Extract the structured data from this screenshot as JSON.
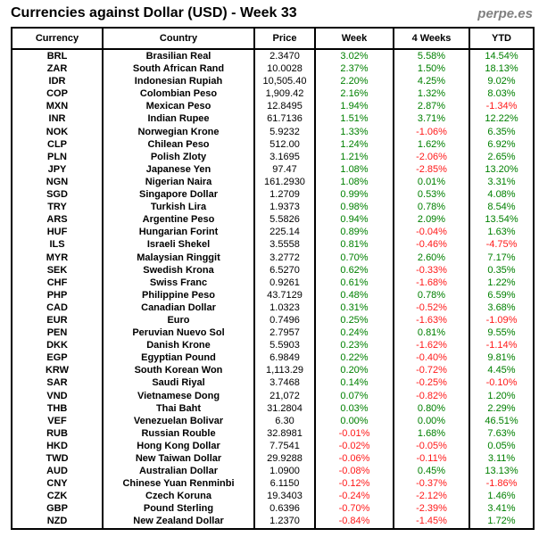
{
  "header": {
    "title": "Currencies against Dollar (USD) - Week 33",
    "brand": "perpe.es"
  },
  "colors": {
    "positive": "#008000",
    "negative": "#ff1a1a",
    "text": "#000000",
    "brand": "#808080",
    "border": "#000000"
  },
  "chart_data": {
    "type": "table",
    "title": "Currencies against Dollar (USD) - Week 33",
    "columns": [
      "Currency",
      "Country",
      "Price",
      "Week",
      "4 Weeks",
      "YTD"
    ],
    "rows": [
      [
        "BRL",
        "Brasilian Real",
        "2.3470",
        "3.02%",
        "5.58%",
        "14.54%"
      ],
      [
        "ZAR",
        "South African Rand",
        "10.0028",
        "2.37%",
        "1.50%",
        "18.13%"
      ],
      [
        "IDR",
        "Indonesian Rupiah",
        "10,505.40",
        "2.20%",
        "4.25%",
        "9.02%"
      ],
      [
        "COP",
        "Colombian Peso",
        "1,909.42",
        "2.16%",
        "1.32%",
        "8.03%"
      ],
      [
        "MXN",
        "Mexican Peso",
        "12.8495",
        "1.94%",
        "2.87%",
        "-1.34%"
      ],
      [
        "INR",
        "Indian Rupee",
        "61.7136",
        "1.51%",
        "3.71%",
        "12.22%"
      ],
      [
        "NOK",
        "Norwegian Krone",
        "5.9232",
        "1.33%",
        "-1.06%",
        "6.35%"
      ],
      [
        "CLP",
        "Chilean Peso",
        "512.00",
        "1.24%",
        "1.62%",
        "6.92%"
      ],
      [
        "PLN",
        "Polish Zloty",
        "3.1695",
        "1.21%",
        "-2.06%",
        "2.65%"
      ],
      [
        "JPY",
        "Japanese Yen",
        "97.47",
        "1.08%",
        "-2.85%",
        "13.20%"
      ],
      [
        "NGN",
        "Nigerian Naira",
        "161.2930",
        "1.08%",
        "0.01%",
        "3.31%"
      ],
      [
        "SGD",
        "Singapore Dollar",
        "1.2709",
        "0.99%",
        "0.53%",
        "4.08%"
      ],
      [
        "TRY",
        "Turkish Lira",
        "1.9373",
        "0.98%",
        "0.78%",
        "8.54%"
      ],
      [
        "ARS",
        "Argentine Peso",
        "5.5826",
        "0.94%",
        "2.09%",
        "13.54%"
      ],
      [
        "HUF",
        "Hungarian Forint",
        "225.14",
        "0.89%",
        "-0.04%",
        "1.63%"
      ],
      [
        "ILS",
        "Israeli Shekel",
        "3.5558",
        "0.81%",
        "-0.46%",
        "-4.75%"
      ],
      [
        "MYR",
        "Malaysian Ringgit",
        "3.2772",
        "0.70%",
        "2.60%",
        "7.17%"
      ],
      [
        "SEK",
        "Swedish Krona",
        "6.5270",
        "0.62%",
        "-0.33%",
        "0.35%"
      ],
      [
        "CHF",
        "Swiss Franc",
        "0.9261",
        "0.61%",
        "-1.68%",
        "1.22%"
      ],
      [
        "PHP",
        "Philippine Peso",
        "43.7129",
        "0.48%",
        "0.78%",
        "6.59%"
      ],
      [
        "CAD",
        "Canadian Dollar",
        "1.0323",
        "0.31%",
        "-0.52%",
        "3.68%"
      ],
      [
        "EUR",
        "Euro",
        "0.7496",
        "0.25%",
        "-1.63%",
        "-1.09%"
      ],
      [
        "PEN",
        "Peruvian Nuevo Sol",
        "2.7957",
        "0.24%",
        "0.81%",
        "9.55%"
      ],
      [
        "DKK",
        "Danish Krone",
        "5.5903",
        "0.23%",
        "-1.62%",
        "-1.14%"
      ],
      [
        "EGP",
        "Egyptian Pound",
        "6.9849",
        "0.22%",
        "-0.40%",
        "9.81%"
      ],
      [
        "KRW",
        "South Korean Won",
        "1,113.29",
        "0.20%",
        "-0.72%",
        "4.45%"
      ],
      [
        "SAR",
        "Saudi Riyal",
        "3.7468",
        "0.14%",
        "-0.25%",
        "-0.10%"
      ],
      [
        "VND",
        "Vietnamese Dong",
        "21,072",
        "0.07%",
        "-0.82%",
        "1.20%"
      ],
      [
        "THB",
        "Thai Baht",
        "31.2804",
        "0.03%",
        "0.80%",
        "2.29%"
      ],
      [
        "VEF",
        "Venezuelan Bolivar",
        "6.30",
        "0.00%",
        "0.00%",
        "46.51%"
      ],
      [
        "RUB",
        "Russian Rouble",
        "32.8981",
        "-0.01%",
        "1.68%",
        "7.63%"
      ],
      [
        "HKD",
        "Hong Kong Dollar",
        "7.7541",
        "-0.02%",
        "-0.05%",
        "0.05%"
      ],
      [
        "TWD",
        "New Taiwan Dollar",
        "29.9288",
        "-0.06%",
        "-0.11%",
        "3.11%"
      ],
      [
        "AUD",
        "Australian Dollar",
        "1.0900",
        "-0.08%",
        "0.45%",
        "13.13%"
      ],
      [
        "CNY",
        "Chinese Yuan Renminbi",
        "6.1150",
        "-0.12%",
        "-0.37%",
        "-1.86%"
      ],
      [
        "CZK",
        "Czech Koruna",
        "19.3403",
        "-0.24%",
        "-2.12%",
        "1.46%"
      ],
      [
        "GBP",
        "Pound Sterling",
        "0.6396",
        "-0.70%",
        "-2.39%",
        "3.41%"
      ],
      [
        "NZD",
        "New Zealand Dollar",
        "1.2370",
        "-0.84%",
        "-1.45%",
        "1.72%"
      ]
    ]
  }
}
